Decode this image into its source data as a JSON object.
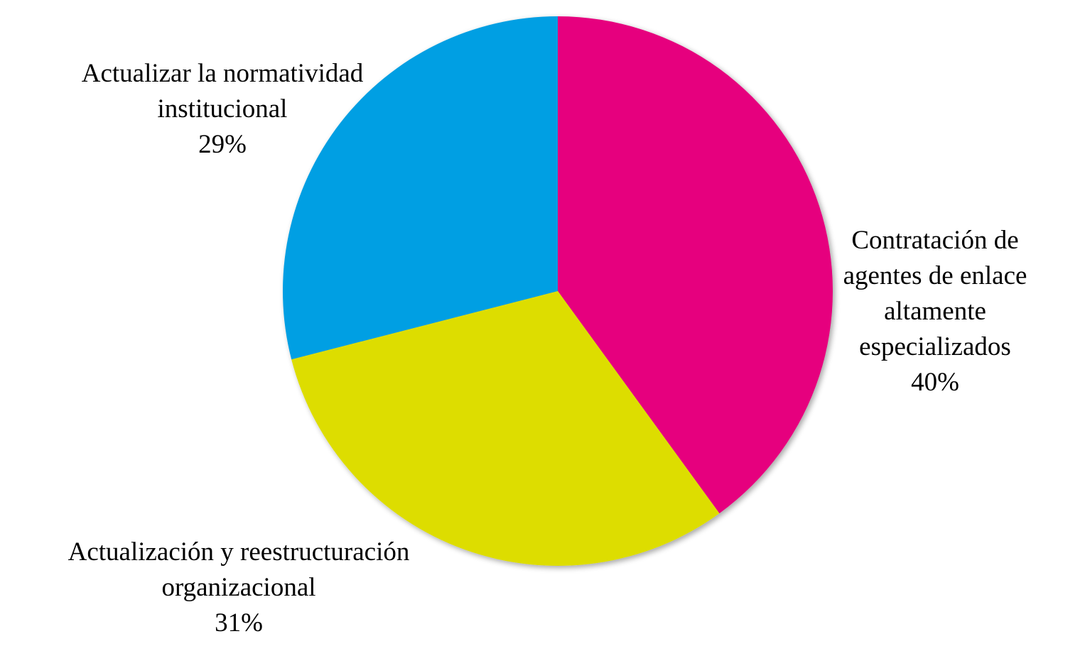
{
  "chart_data": {
    "type": "pie",
    "title": "",
    "start_angle_deg": 0,
    "direction": "clockwise",
    "slices": [
      {
        "label_lines": [
          "Contratación de",
          "agentes de enlace",
          "altamente",
          "especializados"
        ],
        "value": 40,
        "percent_label": "40%",
        "color": "#E6007E"
      },
      {
        "label_lines": [
          "Actualización y reestructuración",
          "organizacional"
        ],
        "value": 31,
        "percent_label": "31%",
        "color": "#DDDD00"
      },
      {
        "label_lines": [
          "Actualizar la normatividad",
          "institucional"
        ],
        "value": 29,
        "percent_label": "29%",
        "color": "#009FE3"
      }
    ]
  }
}
